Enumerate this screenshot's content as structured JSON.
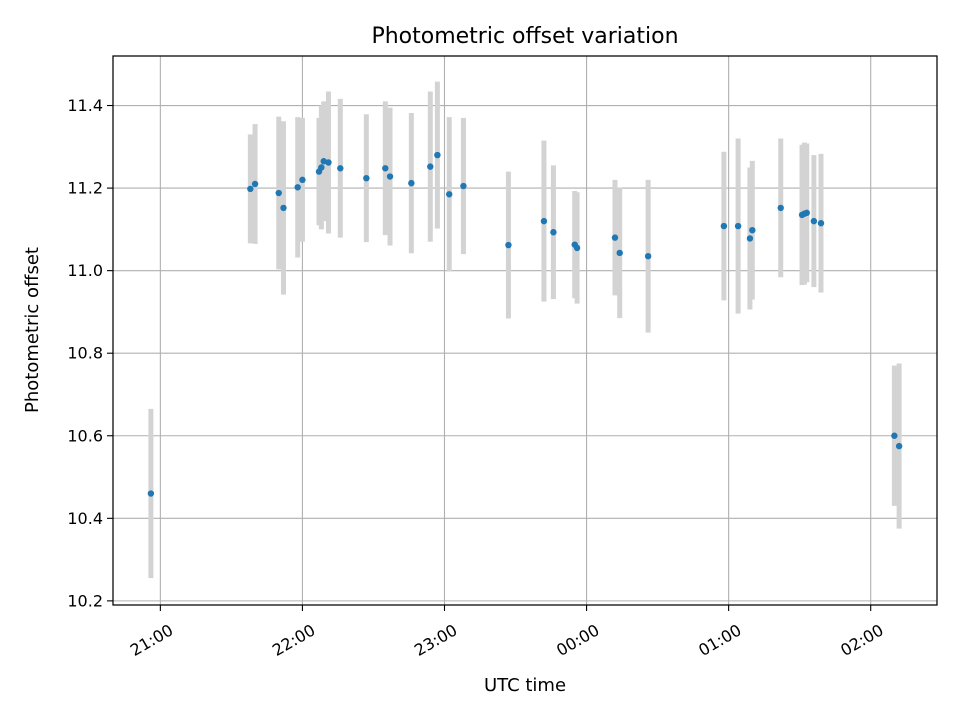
{
  "chart_data": {
    "type": "scatter",
    "title": "Photometric offset variation",
    "xlabel": "UTC time",
    "ylabel": "Photometric offset",
    "grid": true,
    "xlim": [
      "20:40",
      "02:28"
    ],
    "ylim": [
      10.19,
      11.52
    ],
    "x_ticks": [
      "21:00",
      "22:00",
      "23:00",
      "00:00",
      "01:00",
      "02:00"
    ],
    "y_ticks": [
      "10.2",
      "10.4",
      "10.6",
      "10.8",
      "11.0",
      "11.2",
      "11.4"
    ],
    "point_color": "#1f77b4",
    "errorbar_color": "#d3d3d3",
    "points": [
      {
        "x": "20:56",
        "y": 10.46,
        "yerr": 0.205
      },
      {
        "x": "21:38",
        "y": 11.198,
        "yerr": 0.132
      },
      {
        "x": "21:40",
        "y": 11.21,
        "yerr": 0.145
      },
      {
        "x": "21:50",
        "y": 11.188,
        "yerr": 0.185
      },
      {
        "x": "21:52",
        "y": 11.152,
        "yerr": 0.21
      },
      {
        "x": "21:58",
        "y": 11.202,
        "yerr": 0.17
      },
      {
        "x": "22:00",
        "y": 11.22,
        "yerr": 0.15
      },
      {
        "x": "22:07",
        "y": 11.24,
        "yerr": 0.13
      },
      {
        "x": "22:08",
        "y": 11.25,
        "yerr": 0.15
      },
      {
        "x": "22:09",
        "y": 11.265,
        "yerr": 0.145
      },
      {
        "x": "22:11",
        "y": 11.262,
        "yerr": 0.172
      },
      {
        "x": "22:16",
        "y": 11.248,
        "yerr": 0.168
      },
      {
        "x": "22:27",
        "y": 11.224,
        "yerr": 0.155
      },
      {
        "x": "22:35",
        "y": 11.248,
        "yerr": 0.162
      },
      {
        "x": "22:37",
        "y": 11.228,
        "yerr": 0.167
      },
      {
        "x": "22:46",
        "y": 11.212,
        "yerr": 0.17
      },
      {
        "x": "22:54",
        "y": 11.252,
        "yerr": 0.182
      },
      {
        "x": "22:57",
        "y": 11.28,
        "yerr": 0.178
      },
      {
        "x": "23:02",
        "y": 11.185,
        "yerr": 0.187
      },
      {
        "x": "23:08",
        "y": 11.205,
        "yerr": 0.165
      },
      {
        "x": "23:27",
        "y": 11.062,
        "yerr": 0.178
      },
      {
        "x": "23:42",
        "y": 11.12,
        "yerr": 0.195
      },
      {
        "x": "23:46",
        "y": 11.093,
        "yerr": 0.162
      },
      {
        "x": "23:55",
        "y": 11.063,
        "yerr": 0.13
      },
      {
        "x": "23:56",
        "y": 11.055,
        "yerr": 0.135
      },
      {
        "x": "00:12",
        "y": 11.08,
        "yerr": 0.14
      },
      {
        "x": "00:14",
        "y": 11.043,
        "yerr": 0.158
      },
      {
        "x": "00:26",
        "y": 11.035,
        "yerr": 0.185
      },
      {
        "x": "00:58",
        "y": 11.108,
        "yerr": 0.18
      },
      {
        "x": "01:04",
        "y": 11.108,
        "yerr": 0.212
      },
      {
        "x": "01:09",
        "y": 11.078,
        "yerr": 0.172
      },
      {
        "x": "01:10",
        "y": 11.098,
        "yerr": 0.168
      },
      {
        "x": "01:22",
        "y": 11.152,
        "yerr": 0.168
      },
      {
        "x": "01:31",
        "y": 11.135,
        "yerr": 0.17
      },
      {
        "x": "01:32",
        "y": 11.138,
        "yerr": 0.172
      },
      {
        "x": "01:33",
        "y": 11.14,
        "yerr": 0.168
      },
      {
        "x": "01:36",
        "y": 11.12,
        "yerr": 0.16
      },
      {
        "x": "01:39",
        "y": 11.115,
        "yerr": 0.168
      },
      {
        "x": "02:10",
        "y": 10.6,
        "yerr": 0.17
      },
      {
        "x": "02:12",
        "y": 10.575,
        "yerr": 0.2
      }
    ]
  }
}
